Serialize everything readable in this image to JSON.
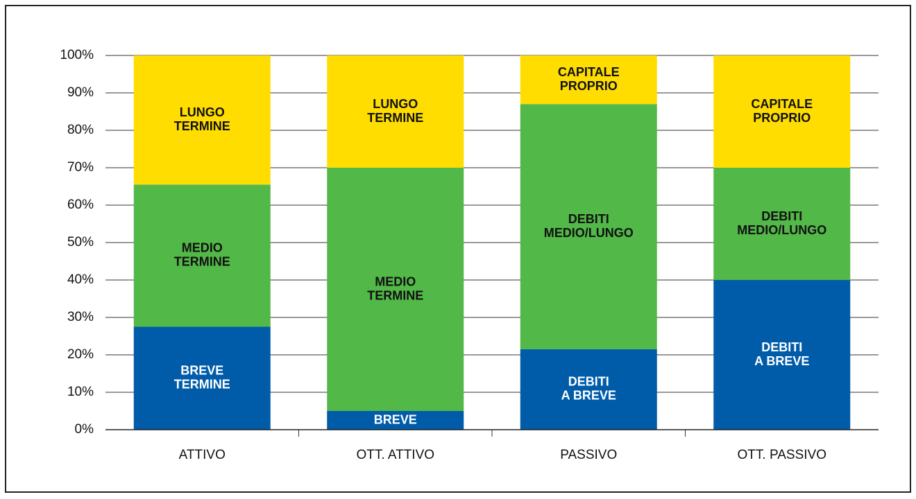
{
  "chart_data": {
    "type": "stacked_bar",
    "categories": [
      "ATTIVO",
      "OTT. ATTIVO",
      "PASSIVO",
      "OTT. PASSIVO"
    ],
    "series": [
      {
        "color": "#005ca9",
        "label_color": "#ffffff",
        "values": [
          27.5,
          5,
          21.5,
          40
        ],
        "labels": [
          [
            "BREVE",
            "TERMINE"
          ],
          [
            "BREVE"
          ],
          [
            "DEBITI",
            "A BREVE"
          ],
          [
            "DEBITI",
            "A BREVE"
          ]
        ]
      },
      {
        "color": "#52b848",
        "label_color": "#111111",
        "values": [
          38,
          65,
          65.5,
          30
        ],
        "labels": [
          [
            "MEDIO",
            "TERMINE"
          ],
          [
            "MEDIO",
            "TERMINE"
          ],
          [
            "DEBITI",
            "MEDIO/LUNGO"
          ],
          [
            "DEBITI",
            "MEDIO/LUNGO"
          ]
        ]
      },
      {
        "color": "#ffdd00",
        "label_color": "#111111",
        "values": [
          34.5,
          30,
          13,
          30
        ],
        "labels": [
          [
            "LUNGO",
            "TERMINE"
          ],
          [
            "LUNGO",
            "TERMINE"
          ],
          [
            "CAPITALE",
            "PROPRIO"
          ],
          [
            "CAPITALE",
            "PROPRIO"
          ]
        ]
      }
    ],
    "ylim": [
      0,
      100
    ],
    "yticks": [
      {
        "value": 0,
        "label": "0%"
      },
      {
        "value": 10,
        "label": "10%"
      },
      {
        "value": 20,
        "label": "20%"
      },
      {
        "value": 30,
        "label": "30%"
      },
      {
        "value": 40,
        "label": "40%"
      },
      {
        "value": 50,
        "label": "50%"
      },
      {
        "value": 60,
        "label": "60%"
      },
      {
        "value": 70,
        "label": "70%"
      },
      {
        "value": 80,
        "label": "80%"
      },
      {
        "value": 90,
        "label": "90%"
      },
      {
        "value": 100,
        "label": "100%"
      }
    ],
    "grid": true
  }
}
